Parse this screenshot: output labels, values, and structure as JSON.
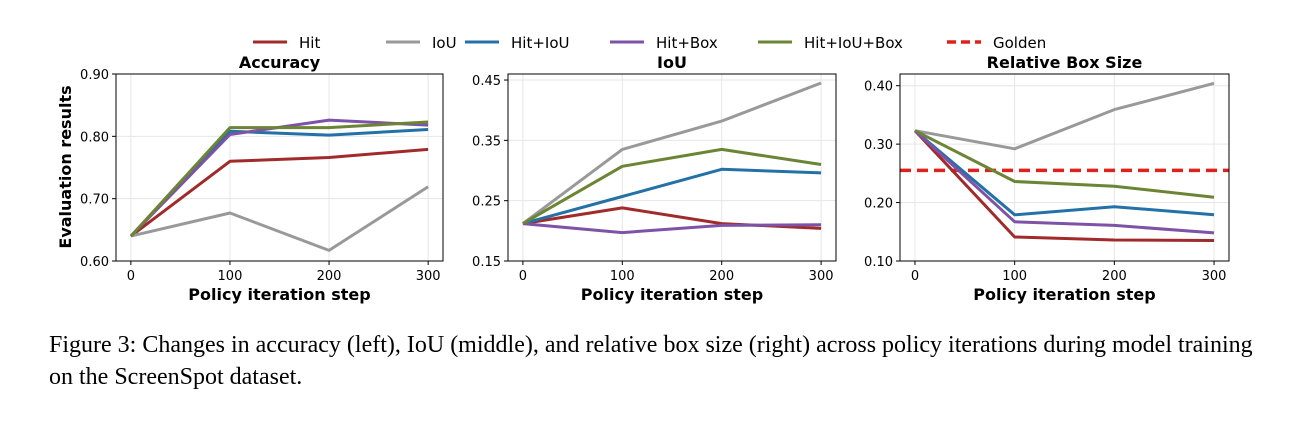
{
  "legend": [
    {
      "name": "Hit",
      "color": "#a12b2b",
      "dashed": false
    },
    {
      "name": "IoU",
      "color": "#999999",
      "dashed": false
    },
    {
      "name": "Hit+IoU",
      "color": "#2471a8",
      "dashed": false
    },
    {
      "name": "Hit+Box",
      "color": "#7e52a6",
      "dashed": false
    },
    {
      "name": "Hit+IoU+Box",
      "color": "#6b8535",
      "dashed": false
    },
    {
      "name": "Golden",
      "color": "#e0201c",
      "dashed": true
    }
  ],
  "chart_data": [
    {
      "type": "line",
      "title": "Accuracy",
      "xlabel": "Policy iteration step",
      "ylabel": "Evaluation results",
      "x": [
        0,
        100,
        200,
        300
      ],
      "xticks": [
        "0",
        "100",
        "200",
        "300"
      ],
      "xlim": [
        -15,
        315
      ],
      "ylim": [
        0.6,
        0.9
      ],
      "yticks": [
        0.6,
        0.7,
        0.8,
        0.9
      ],
      "ytick_labels": [
        "0.60",
        "0.70",
        "0.80",
        "0.90"
      ],
      "grid": true,
      "series": [
        {
          "name": "Hit",
          "color": "#a12b2b",
          "values": [
            0.64,
            0.76,
            0.766,
            0.779
          ]
        },
        {
          "name": "IoU",
          "color": "#999999",
          "values": [
            0.64,
            0.677,
            0.617,
            0.719
          ]
        },
        {
          "name": "Hit+IoU",
          "color": "#2471a8",
          "values": [
            0.64,
            0.808,
            0.802,
            0.811
          ]
        },
        {
          "name": "Hit+Box",
          "color": "#7e52a6",
          "values": [
            0.64,
            0.803,
            0.826,
            0.818
          ]
        },
        {
          "name": "Hit+IoU+Box",
          "color": "#6b8535",
          "values": [
            0.64,
            0.814,
            0.814,
            0.823
          ]
        }
      ]
    },
    {
      "type": "line",
      "title": "IoU",
      "xlabel": "Policy iteration step",
      "ylabel": "",
      "x": [
        0,
        100,
        200,
        300
      ],
      "xticks": [
        "0",
        "100",
        "200",
        "300"
      ],
      "xlim": [
        -15,
        315
      ],
      "ylim": [
        0.15,
        0.46
      ],
      "yticks": [
        0.15,
        0.25,
        0.35,
        0.45
      ],
      "ytick_labels": [
        "0.15",
        "0.25",
        "0.35",
        "0.45"
      ],
      "grid": true,
      "series": [
        {
          "name": "Hit",
          "color": "#a12b2b",
          "values": [
            0.212,
            0.238,
            0.212,
            0.204
          ]
        },
        {
          "name": "IoU",
          "color": "#999999",
          "values": [
            0.212,
            0.335,
            0.382,
            0.445
          ]
        },
        {
          "name": "Hit+IoU",
          "color": "#2471a8",
          "values": [
            0.212,
            0.257,
            0.302,
            0.296
          ]
        },
        {
          "name": "Hit+Box",
          "color": "#7e52a6",
          "values": [
            0.212,
            0.197,
            0.209,
            0.21
          ]
        },
        {
          "name": "Hit+IoU+Box",
          "color": "#6b8535",
          "values": [
            0.212,
            0.307,
            0.335,
            0.31
          ]
        }
      ]
    },
    {
      "type": "line",
      "title": "Relative Box Size",
      "xlabel": "Policy iteration step",
      "ylabel": "",
      "x": [
        0,
        100,
        200,
        300
      ],
      "xticks": [
        "0",
        "100",
        "200",
        "300"
      ],
      "xlim": [
        -15,
        315
      ],
      "ylim": [
        0.1,
        0.42
      ],
      "yticks": [
        0.1,
        0.2,
        0.3,
        0.4
      ],
      "ytick_labels": [
        "0.10",
        "0.20",
        "0.30",
        "0.40"
      ],
      "grid": true,
      "hline": {
        "name": "Golden",
        "color": "#e0201c",
        "value": 0.255
      },
      "series": [
        {
          "name": "Hit",
          "color": "#a12b2b",
          "values": [
            0.323,
            0.141,
            0.136,
            0.135
          ]
        },
        {
          "name": "IoU",
          "color": "#999999",
          "values": [
            0.323,
            0.292,
            0.359,
            0.404
          ]
        },
        {
          "name": "Hit+IoU",
          "color": "#2471a8",
          "values": [
            0.323,
            0.179,
            0.193,
            0.179
          ]
        },
        {
          "name": "Hit+Box",
          "color": "#7e52a6",
          "values": [
            0.323,
            0.167,
            0.161,
            0.148
          ]
        },
        {
          "name": "Hit+IoU+Box",
          "color": "#6b8535",
          "values": [
            0.323,
            0.236,
            0.228,
            0.209
          ]
        }
      ]
    }
  ],
  "caption": "Figure 3: Changes in accuracy (left), IoU (middle), and relative box size (right) across policy iterations during model training on the ScreenSpot dataset."
}
